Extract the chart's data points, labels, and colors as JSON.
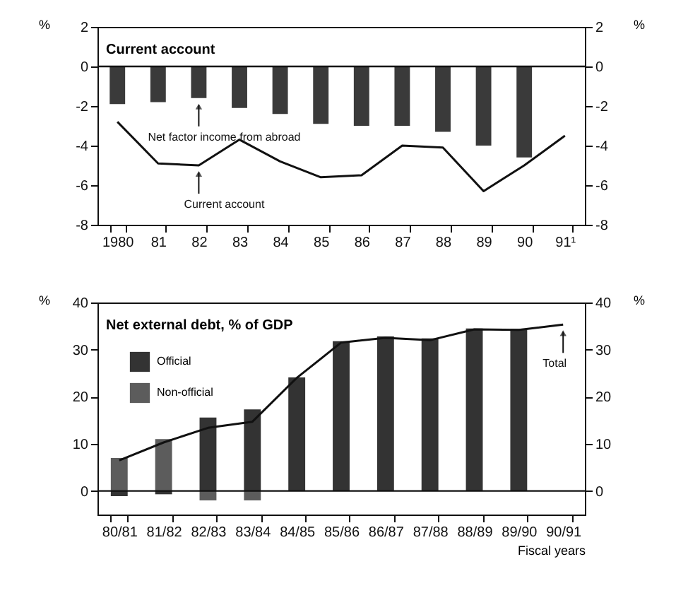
{
  "chart_data": [
    {
      "type": "bar",
      "title": "Current account",
      "ylabel": "%",
      "y2label": "%",
      "categories": [
        "1980",
        "81",
        "82",
        "83",
        "84",
        "85",
        "86",
        "87",
        "88",
        "89",
        "90",
        "91¹"
      ],
      "series": [
        {
          "color": "#3a3a3a",
          "values": [
            -1.9,
            -1.8,
            -1.6,
            -2.1,
            -2.4,
            -2.9,
            -3.0,
            -3.0,
            -3.3,
            -4.0,
            -4.6,
            null
          ]
        },
        {
          "type": "line",
          "color": "#111111",
          "values": [
            -2.8,
            -4.9,
            -5.0,
            -3.7,
            -4.8,
            -5.6,
            -5.5,
            -4.0,
            -4.1,
            -6.3,
            -5.0,
            -3.5
          ]
        }
      ],
      "ylim": [
        -8,
        2
      ],
      "yticks": [
        -8,
        -6,
        -4,
        -2,
        0,
        2
      ],
      "y2lim": [
        -8,
        2
      ],
      "y2ticks": [
        -8,
        -6,
        -4,
        -2,
        0,
        2
      ],
      "ref_lines": [
        {
          "axis": "y",
          "value": 0,
          "color": "#111111"
        }
      ],
      "annotations": [
        {
          "text": "Net factor income from abroad",
          "x": "82",
          "y": -1.6
        },
        {
          "text": "Current account",
          "x": "82",
          "y": -5.0
        }
      ],
      "grid": false,
      "marker": "none",
      "line_style": "solid"
    },
    {
      "type": "bar",
      "title": "Net external debt, % of GDP",
      "ylabel": "%",
      "y2label": "%",
      "xlabel": "Fiscal years",
      "categories": [
        "80/81",
        "81/82",
        "82/83",
        "83/84",
        "84/85",
        "85/86",
        "86/87",
        "87/88",
        "88/89",
        "89/90",
        "90/91"
      ],
      "stacked": true,
      "series": [
        {
          "name": "Official",
          "color": "#333333",
          "values": [
            -1.1,
            -0.7,
            15.6,
            17.3,
            24.1,
            31.8,
            32.8,
            32.4,
            34.5,
            34.4,
            null
          ]
        },
        {
          "name": "Non-official",
          "color": "#5c5c5c",
          "values": [
            7.0,
            11.0,
            -2.0,
            -2.0,
            null,
            null,
            null,
            null,
            null,
            null,
            null
          ]
        },
        {
          "type": "line",
          "color": "#111111",
          "values": [
            6.5,
            10.3,
            13.4,
            14.7,
            24.0,
            31.5,
            32.5,
            32.0,
            34.3,
            34.2,
            35.3
          ]
        }
      ],
      "ylim": [
        -5,
        40
      ],
      "yticks": [
        0,
        10,
        20,
        30,
        40
      ],
      "y2lim": [
        -5,
        40
      ],
      "y2ticks": [
        0,
        10,
        20,
        30,
        40
      ],
      "ref_lines": [
        {
          "axis": "y",
          "value": 0,
          "color": "#111111"
        }
      ],
      "annotations": [
        {
          "text": "Total",
          "x": "90/91",
          "y": 35.3
        }
      ],
      "grid": false,
      "legend": "top left",
      "marker": "none",
      "line_style": "solid"
    }
  ]
}
